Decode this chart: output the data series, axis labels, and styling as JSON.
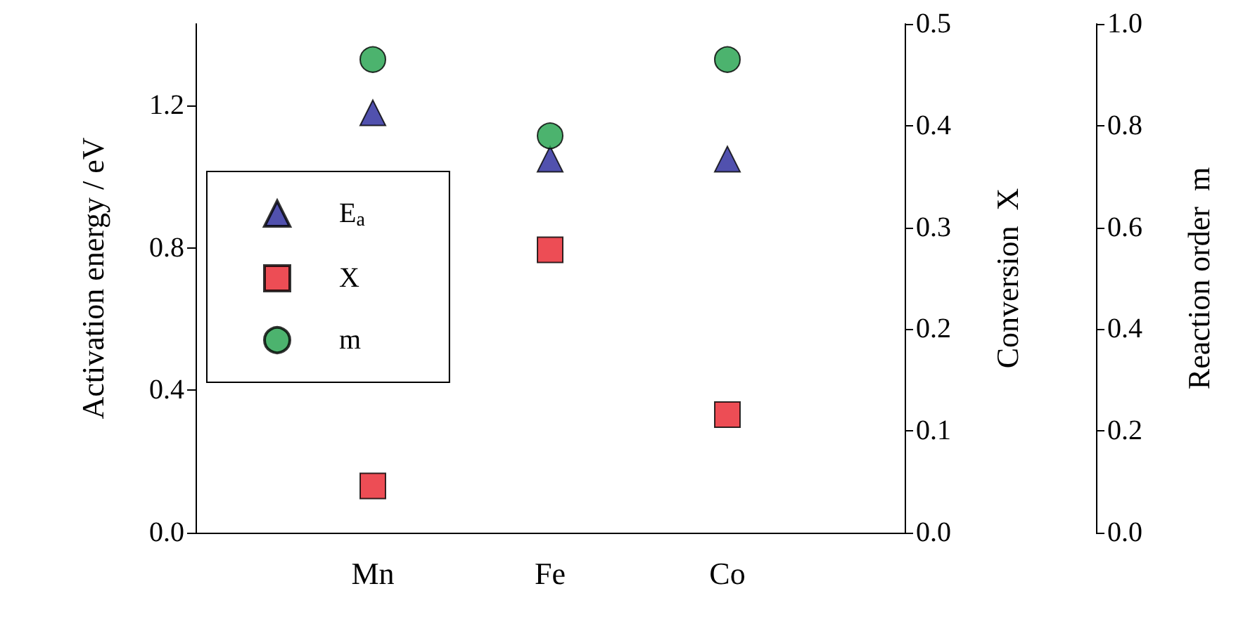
{
  "chart_data": {
    "type": "scatter",
    "categories": [
      "Mn",
      "Fe",
      "Co"
    ],
    "ylabel": "Activation energy / eV",
    "y2label": "Conversion  X",
    "y3label": "Reaction order  m",
    "ylim": [
      0,
      1.43
    ],
    "yticks": [
      {
        "value": 0,
        "label": "0.0"
      },
      {
        "value": 0.4,
        "label": "0.4"
      },
      {
        "value": 0.8,
        "label": "0.8"
      },
      {
        "value": 1.2,
        "label": "1.2"
      }
    ],
    "y2lim": [
      0,
      0.5
    ],
    "y2ticks": [
      {
        "value": 0,
        "label": "0.0"
      },
      {
        "value": 0.1,
        "label": "0.1"
      },
      {
        "value": 0.2,
        "label": "0.2"
      },
      {
        "value": 0.3,
        "label": "0.3"
      },
      {
        "value": 0.4,
        "label": "0.4"
      },
      {
        "value": 0.5,
        "label": "0.5"
      }
    ],
    "y3lim": [
      0,
      1
    ],
    "y3ticks": [
      {
        "value": 0,
        "label": "0.0"
      },
      {
        "value": 0.2,
        "label": "0.2"
      },
      {
        "value": 0.4,
        "label": "0.4"
      },
      {
        "value": 0.6,
        "label": "0.6"
      },
      {
        "value": 0.8,
        "label": "0.8"
      },
      {
        "value": 1,
        "label": "1.0"
      }
    ],
    "legend": "left",
    "grid": false,
    "series": [
      {
        "name": "E$_{a}$",
        "color": "#26269a",
        "marker": "triangle",
        "values": [
          1.18,
          1.05,
          1.05
        ]
      },
      {
        "name": "X",
        "color": "#e8202a",
        "marker": "square",
        "axis": "y2",
        "values": [
          0.046,
          0.278,
          0.116
        ]
      },
      {
        "name": "m",
        "color": "#1fa04a",
        "marker": "circle",
        "axis": "y3",
        "values": [
          0.93,
          0.78,
          0.93
        ]
      }
    ]
  }
}
